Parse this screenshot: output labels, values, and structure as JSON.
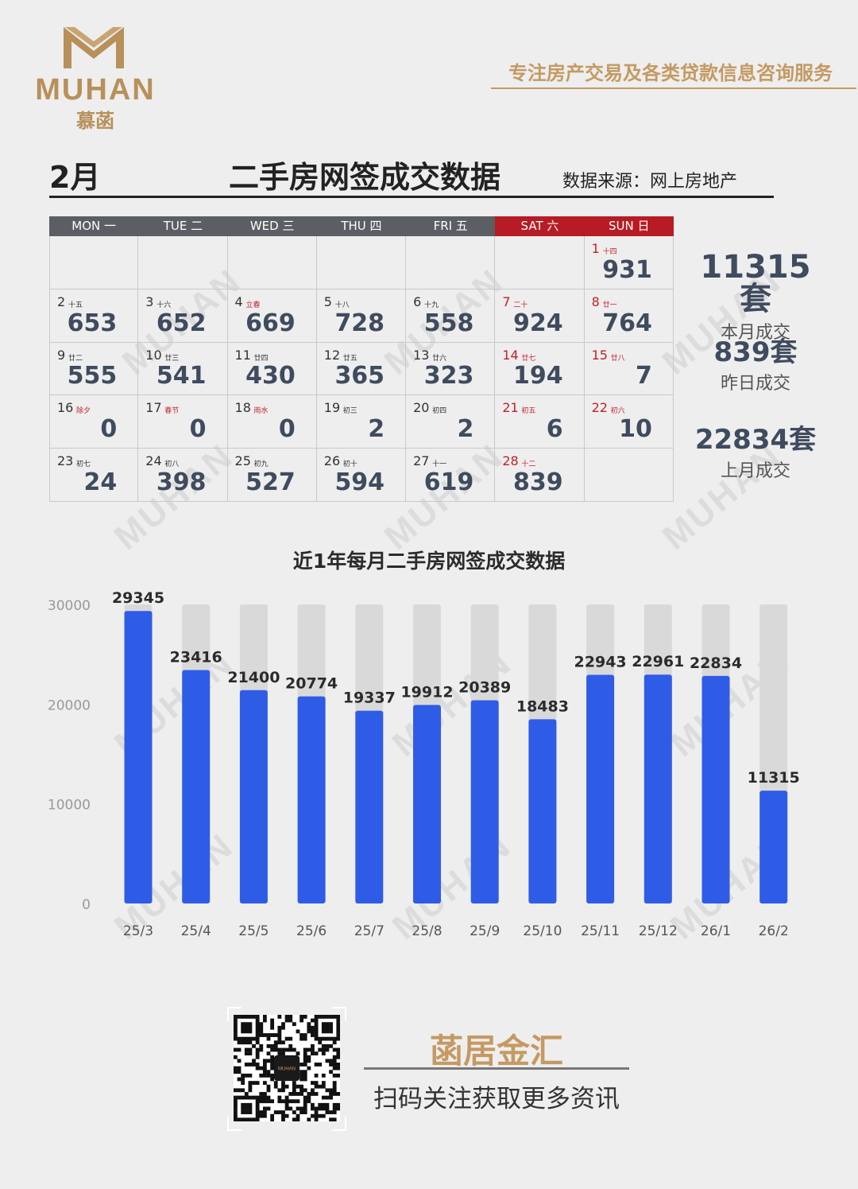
{
  "header": {
    "logo_text": "MUHAN",
    "logo_cn": "慕菡",
    "slogan": "专注房产交易及各类贷款信息咨询服务"
  },
  "title_bar": {
    "month": "2月",
    "title": "二手房网签成交数据",
    "source": "数据来源：网上房地产"
  },
  "calendar": {
    "weekdays": [
      "MON 一",
      "TUE 二",
      "WED 三",
      "THU 四",
      "FRI 五",
      "SAT 六",
      "SUN 日"
    ],
    "weekend_color": "#b71c24",
    "cells": [
      null,
      null,
      null,
      null,
      null,
      null,
      {
        "day": "1",
        "lunar": "十四",
        "value": "931"
      },
      {
        "day": "2",
        "lunar": "十五",
        "value": "653"
      },
      {
        "day": "3",
        "lunar": "十六",
        "value": "652"
      },
      {
        "day": "4",
        "lunar": "立春",
        "value": "669",
        "lunar_red": true
      },
      {
        "day": "5",
        "lunar": "十八",
        "value": "728"
      },
      {
        "day": "6",
        "lunar": "十九",
        "value": "558"
      },
      {
        "day": "7",
        "lunar": "二十",
        "value": "924"
      },
      {
        "day": "8",
        "lunar": "廿一",
        "value": "764"
      },
      {
        "day": "9",
        "lunar": "廿二",
        "value": "555"
      },
      {
        "day": "10",
        "lunar": "廿三",
        "value": "541"
      },
      {
        "day": "11",
        "lunar": "廿四",
        "value": "430"
      },
      {
        "day": "12",
        "lunar": "廿五",
        "value": "365"
      },
      {
        "day": "13",
        "lunar": "廿六",
        "value": "323"
      },
      {
        "day": "14",
        "lunar": "廿七",
        "value": "194"
      },
      {
        "day": "15",
        "lunar": "廿八",
        "value": "7"
      },
      {
        "day": "16",
        "lunar": "除夕",
        "value": "0",
        "lunar_red": true
      },
      {
        "day": "17",
        "lunar": "春节",
        "value": "0",
        "lunar_red": true
      },
      {
        "day": "18",
        "lunar": "雨水",
        "value": "0",
        "lunar_red": true
      },
      {
        "day": "19",
        "lunar": "初三",
        "value": "2"
      },
      {
        "day": "20",
        "lunar": "初四",
        "value": "2"
      },
      {
        "day": "21",
        "lunar": "初五",
        "value": "6"
      },
      {
        "day": "22",
        "lunar": "初六",
        "value": "10"
      },
      {
        "day": "23",
        "lunar": "初七",
        "value": "24"
      },
      {
        "day": "24",
        "lunar": "初八",
        "value": "398"
      },
      {
        "day": "25",
        "lunar": "初九",
        "value": "527"
      },
      {
        "day": "26",
        "lunar": "初十",
        "value": "594"
      },
      {
        "day": "27",
        "lunar": "十一",
        "value": "619"
      },
      {
        "day": "28",
        "lunar": "十二",
        "value": "839"
      },
      null
    ]
  },
  "stats": {
    "this_month_value": "11315套",
    "this_month_label": "本月成交",
    "yesterday_value": "839套",
    "yesterday_label": "昨日成交",
    "last_month_value": "22834套",
    "last_month_label": "上月成交"
  },
  "chart_data": {
    "type": "bar",
    "title": "近1年每月二手房网签成交数据",
    "categories": [
      "25/3",
      "25/4",
      "25/5",
      "25/6",
      "25/7",
      "25/8",
      "25/9",
      "25/10",
      "25/11",
      "25/12",
      "26/1",
      "26/2"
    ],
    "values": [
      29345,
      23416,
      21400,
      20774,
      19337,
      19912,
      20389,
      18483,
      22943,
      22961,
      22834,
      11315
    ],
    "ylim": [
      0,
      30000
    ],
    "yticks": [
      0,
      10000,
      20000,
      30000
    ],
    "bar_color": "#2f5ce6",
    "track_color": "#d9d9d9",
    "grid": false,
    "legend": "none"
  },
  "footer": {
    "brand": "菡居金汇",
    "subtitle": "扫码关注获取更多资讯",
    "qr_label": "MUHAN"
  }
}
